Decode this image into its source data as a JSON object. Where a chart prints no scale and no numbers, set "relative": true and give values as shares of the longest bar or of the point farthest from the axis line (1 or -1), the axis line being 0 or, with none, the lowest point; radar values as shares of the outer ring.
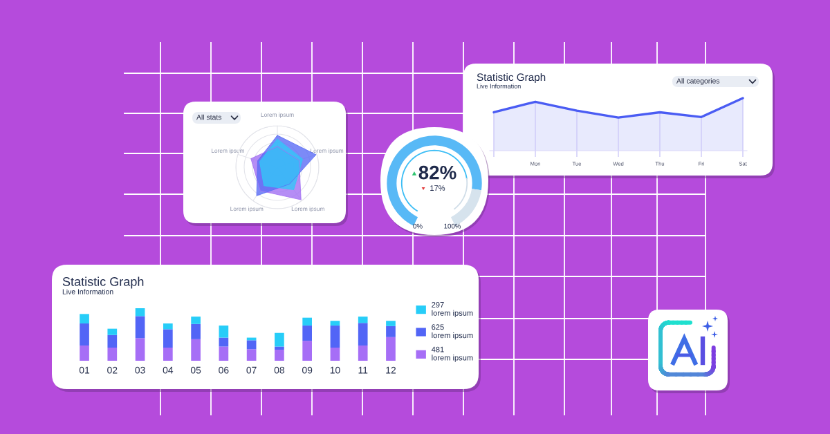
{
  "chart_data": [
    {
      "type": "radar",
      "categories": [
        "Lorem ipsum",
        "Lorem ipsum",
        "Lorem ipsum",
        "Lorem ipsum",
        "Lorem ipsum"
      ],
      "relative": true,
      "grid": true,
      "series": [
        {
          "color": "#a370f3",
          "values": [
            0.5,
            0.55,
            0.97,
            0.7,
            0.67
          ]
        },
        {
          "color": "#5b6df5",
          "values": [
            0.77,
            0.98,
            0.5,
            0.85,
            0.5
          ]
        },
        {
          "color": "#33c5f7",
          "values": [
            0.68,
            0.64,
            0.67,
            0.55,
            0.45
          ]
        }
      ],
      "annotations": [
        "All stats"
      ]
    },
    {
      "type": "donut",
      "categories": [
        null,
        null
      ],
      "values": [
        82,
        18
      ],
      "colors": [
        "#58b9f6",
        "#d6e3ed"
      ],
      "annotations": [
        "82%",
        "17%",
        "0%",
        "100%"
      ]
    },
    {
      "type": "area",
      "title": "Statistic Graph",
      "subtitle": "Live Information",
      "categories": [
        null,
        "Mon",
        "Tue",
        "Wed",
        "Thu",
        "Fri",
        "Sat"
      ],
      "values": [
        0.73,
        0.93,
        0.76,
        0.63,
        0.73,
        0.64,
        1.0
      ],
      "color": "#4a5cf3",
      "relative": true,
      "grid": "x",
      "annotations": [
        "All categories"
      ]
    },
    {
      "type": "bar",
      "title": "Statistic Graph",
      "subtitle": "Live Information",
      "stacked": true,
      "relative": true,
      "categories": [
        "01",
        "02",
        "03",
        "04",
        "05",
        "06",
        "07",
        "08",
        "09",
        "10",
        "11",
        "12"
      ],
      "series": [
        {
          "name": "481\nlorem ipsum",
          "color": "#a66ef6",
          "values": [
            0.29,
            0.25,
            0.43,
            0.25,
            0.41,
            0.27,
            0.22,
            0.21,
            0.38,
            0.25,
            0.29,
            0.45
          ]
        },
        {
          "name": "625\nlorem ipsum",
          "color": "#5265f6",
          "values": [
            0.42,
            0.24,
            0.42,
            0.35,
            0.29,
            0.17,
            0.17,
            0.06,
            0.29,
            0.42,
            0.43,
            0.21
          ]
        },
        {
          "name": "297\nlorem ipsum",
          "color": "#27cdf8",
          "values": [
            0.18,
            0.12,
            0.15,
            0.11,
            0.14,
            0.23,
            0.05,
            0.26,
            0.15,
            0.09,
            0.12,
            0.1
          ]
        }
      ],
      "legend": "right"
    }
  ]
}
